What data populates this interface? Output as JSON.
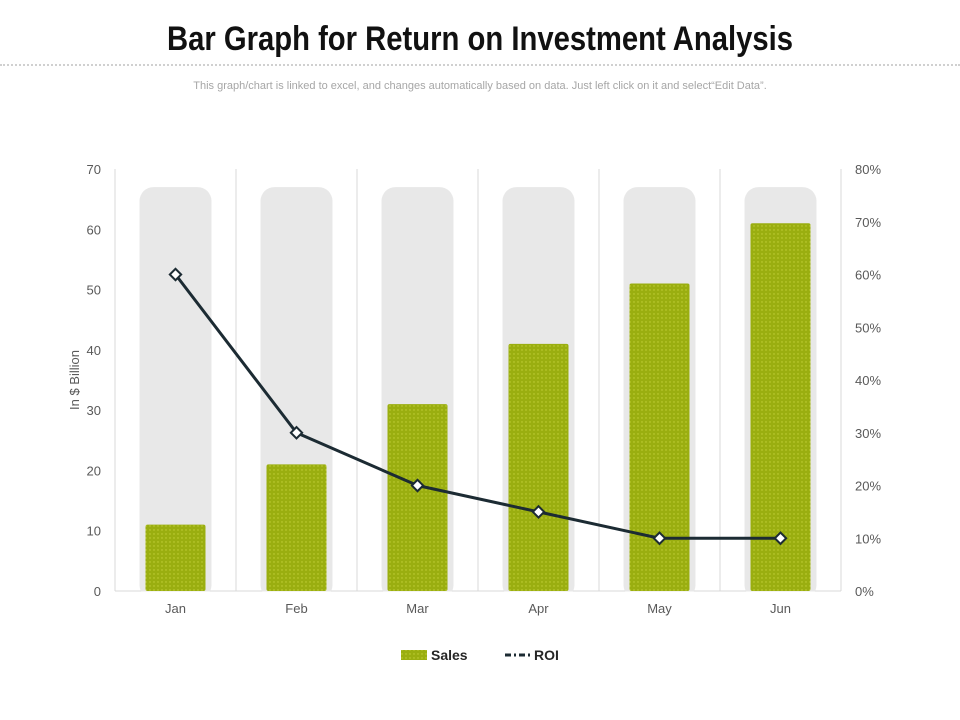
{
  "page": {
    "title": "Bar Graph for Return on Investment Analysis",
    "subtitle": "This graph/chart is linked to excel,  and changes automatically based on data. Just left click on it and select“Edit Data”."
  },
  "colors": {
    "bar": "#9aae10",
    "bar_dots": "#c4d23a",
    "bar_background": "#e8e8e8",
    "line": "#1c2b33",
    "gridline": "#d9d9d9"
  },
  "chart_data": {
    "type": "bar",
    "categories": [
      "Jan",
      "Feb",
      "Mar",
      "Apr",
      "May",
      "Jun"
    ],
    "series": [
      {
        "name": "Sales",
        "type": "bar",
        "axis": "left",
        "values": [
          11,
          21,
          31,
          41,
          51,
          61
        ]
      },
      {
        "name": "ROI",
        "type": "line",
        "axis": "right",
        "values": [
          60,
          30,
          20,
          15,
          10,
          10
        ]
      }
    ],
    "background_bar_value": 67,
    "ylabel": "In $ Billion",
    "ylim": [
      0,
      70
    ],
    "yticks": [
      "0",
      "10",
      "20",
      "30",
      "40",
      "50",
      "60",
      "70"
    ],
    "y2lim": [
      0,
      80
    ],
    "y2ticks": [
      "0%",
      "10%",
      "20%",
      "30%",
      "40%",
      "50%",
      "60%",
      "70%",
      "80%"
    ],
    "grid": "vertical",
    "legend": {
      "position": "bottom",
      "entries": [
        "Sales",
        "ROI"
      ]
    }
  }
}
